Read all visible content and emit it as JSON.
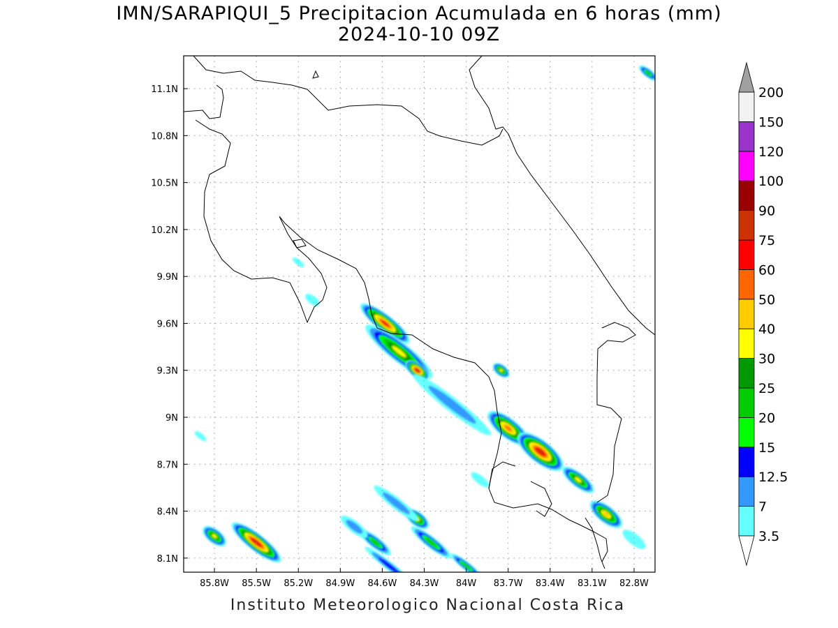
{
  "title": {
    "line1": "IMN/SARAPIQUI_5 Precipitacion Acumulada en 6 horas (mm)",
    "line2": "2024-10-10 09Z"
  },
  "footer": "Instituto Meteorologico Nacional Costa Rica",
  "map": {
    "lon_range": [
      -86.02,
      -82.65
    ],
    "lat_range": [
      8.01,
      11.31
    ],
    "lon_ticks": [
      "85.8W",
      "85.5W",
      "85.2W",
      "84.9W",
      "84.6W",
      "84.3W",
      "84W",
      "83.7W",
      "83.4W",
      "83.1W",
      "82.8W"
    ],
    "lat_ticks": [
      "8.1N",
      "8.4N",
      "8.7N",
      "9N",
      "9.3N",
      "9.6N",
      "9.9N",
      "10.2N",
      "10.5N",
      "10.8N",
      "11.1N"
    ],
    "grid": "dotted"
  },
  "colorbar": {
    "levels": [
      "3.5",
      "7",
      "12.5",
      "15",
      "20",
      "25",
      "30",
      "40",
      "50",
      "60",
      "75",
      "90",
      "100",
      "120",
      "150",
      "200"
    ],
    "colors": [
      "#66ffff",
      "#3399ff",
      "#0000ff",
      "#00ff00",
      "#00cc00",
      "#009900",
      "#ffff00",
      "#ffcc00",
      "#ff6600",
      "#ff0000",
      "#cc3300",
      "#990000",
      "#ff00ff",
      "#9933cc",
      "#f2f2f2",
      "#a0a0a0"
    ]
  },
  "precip_cells": [
    {
      "lon": -84.58,
      "lat": 9.6,
      "mm": 60,
      "along": 0.22,
      "cross": 0.06
    },
    {
      "lon": -84.48,
      "lat": 9.42,
      "mm": 30,
      "along": 0.3,
      "cross": 0.07
    },
    {
      "lon": -84.35,
      "lat": 9.3,
      "mm": 75,
      "along": 0.1,
      "cross": 0.05
    },
    {
      "lon": -84.1,
      "lat": 9.08,
      "mm": 7,
      "along": 0.35,
      "cross": 0.05
    },
    {
      "lon": -83.75,
      "lat": 9.3,
      "mm": 30,
      "along": 0.07,
      "cross": 0.04
    },
    {
      "lon": -83.7,
      "lat": 8.93,
      "mm": 50,
      "along": 0.18,
      "cross": 0.07
    },
    {
      "lon": -83.47,
      "lat": 8.78,
      "mm": 75,
      "along": 0.2,
      "cross": 0.08
    },
    {
      "lon": -83.2,
      "lat": 8.6,
      "mm": 30,
      "along": 0.14,
      "cross": 0.05
    },
    {
      "lon": -83.0,
      "lat": 8.38,
      "mm": 40,
      "along": 0.14,
      "cross": 0.06
    },
    {
      "lon": -85.5,
      "lat": 8.2,
      "mm": 75,
      "along": 0.22,
      "cross": 0.06
    },
    {
      "lon": -85.8,
      "lat": 8.24,
      "mm": 30,
      "along": 0.1,
      "cross": 0.05
    },
    {
      "lon": -84.35,
      "lat": 8.35,
      "mm": 30,
      "along": 0.1,
      "cross": 0.05
    },
    {
      "lon": -84.25,
      "lat": 8.2,
      "mm": 20,
      "along": 0.18,
      "cross": 0.04
    },
    {
      "lon": -84.65,
      "lat": 8.2,
      "mm": 20,
      "along": 0.14,
      "cross": 0.04
    },
    {
      "lon": -84.8,
      "lat": 8.3,
      "mm": 7,
      "along": 0.12,
      "cross": 0.04
    },
    {
      "lon": -84.0,
      "lat": 8.05,
      "mm": 20,
      "along": 0.14,
      "cross": 0.03
    },
    {
      "lon": -84.55,
      "lat": 8.05,
      "mm": 12.5,
      "along": 0.22,
      "cross": 0.03
    },
    {
      "lon": -84.5,
      "lat": 8.45,
      "mm": 7,
      "along": 0.2,
      "cross": 0.04
    },
    {
      "lon": -85.9,
      "lat": 8.88,
      "mm": 3.5,
      "along": 0.05,
      "cross": 0.02
    },
    {
      "lon": -85.1,
      "lat": 9.75,
      "mm": 3.5,
      "along": 0.06,
      "cross": 0.03
    },
    {
      "lon": -85.2,
      "lat": 9.99,
      "mm": 3.5,
      "along": 0.05,
      "cross": 0.02
    },
    {
      "lon": -82.7,
      "lat": 11.2,
      "mm": 20,
      "along": 0.08,
      "cross": 0.03
    },
    {
      "lon": -83.9,
      "lat": 8.6,
      "mm": 3.5,
      "along": 0.08,
      "cross": 0.03
    },
    {
      "lon": -82.8,
      "lat": 8.22,
      "mm": 3.5,
      "along": 0.1,
      "cross": 0.04
    }
  ]
}
